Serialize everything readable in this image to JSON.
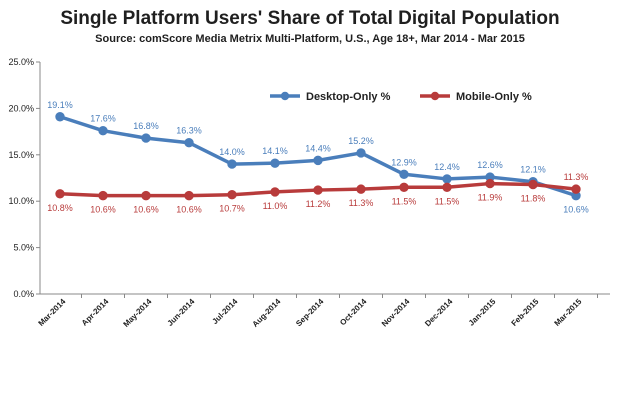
{
  "chart_data": {
    "type": "line",
    "title": "Single Platform Users' Share of Total Digital Population",
    "subtitle": "Source: comScore Media Metrix Multi-Platform, U.S., Age 18+, Mar 2014 - Mar 2015",
    "categories": [
      "Mar-2014",
      "Apr-2014",
      "May-2014",
      "Jun-2014",
      "Jul-2014",
      "Aug-2014",
      "Sep-2014",
      "Oct-2014",
      "Nov-2014",
      "Dec-2014",
      "Jan-2015",
      "Feb-2015",
      "Mar-2015"
    ],
    "series": [
      {
        "name": "Desktop-Only %",
        "color": "#4a7ebb",
        "values": [
          19.1,
          17.6,
          16.8,
          16.3,
          14.0,
          14.1,
          14.4,
          15.2,
          12.9,
          12.4,
          12.6,
          12.1,
          10.6
        ],
        "labels": [
          "19.1%",
          "17.6%",
          "16.8%",
          "16.3%",
          "14.0%",
          "14.1%",
          "14.4%",
          "15.2%",
          "12.9%",
          "12.4%",
          "12.6%",
          "12.1%",
          "10.6%"
        ]
      },
      {
        "name": "Mobile-Only %",
        "color": "#b83b3b",
        "values": [
          10.8,
          10.6,
          10.6,
          10.6,
          10.7,
          11.0,
          11.2,
          11.3,
          11.5,
          11.5,
          11.9,
          11.8,
          11.3
        ],
        "labels": [
          "10.8%",
          "10.6%",
          "10.6%",
          "10.6%",
          "10.7%",
          "11.0%",
          "11.2%",
          "11.3%",
          "11.5%",
          "11.5%",
          "11.9%",
          "11.8%",
          "11.3%"
        ]
      }
    ],
    "yticks": [
      "0.0%",
      "5.0%",
      "10.0%",
      "15.0%",
      "20.0%",
      "25.0%"
    ],
    "ylim": [
      0,
      25
    ],
    "grid": false,
    "legend": "top-right"
  }
}
